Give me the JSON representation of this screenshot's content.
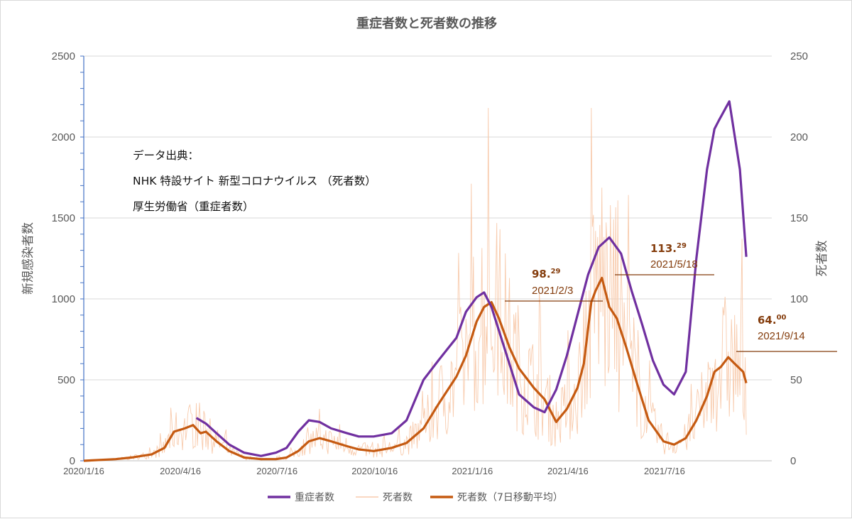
{
  "chart_data": {
    "type": "line",
    "title": "重症者数と死者数の推移",
    "ylabel_left": "新規感染者数",
    "ylabel_right": "死者数",
    "ylim_left": [
      0,
      2500
    ],
    "ylim_right": [
      0,
      250
    ],
    "yticks_left": [
      "0",
      "500",
      "1000",
      "1500",
      "2000",
      "2500"
    ],
    "yticks_right": [
      "0",
      "50",
      "100",
      "150",
      "200",
      "250"
    ],
    "x_tick_labels": [
      "2020/1/16",
      "2020/4/16",
      "2020/7/16",
      "2020/10/16",
      "2021/1/16",
      "2021/4/16",
      "2021/7/16"
    ],
    "x_range": [
      "2020-01-16",
      "2021-10-25"
    ],
    "grid": "horizontal",
    "source_lines": [
      "データ出典：",
      "NHK 特設サイト 新型コロナウイルス （死者数）",
      "厚生労働省（重症者数）"
    ],
    "annotations": [
      {
        "value_int": "98.",
        "value_sup": "29",
        "date": "2021/2/3"
      },
      {
        "value_int": "113.",
        "value_sup": "29",
        "date": "2021/5/18"
      },
      {
        "value_int": "64.",
        "value_sup": "00",
        "date": "2021/9/14"
      }
    ],
    "legend_position": "bottom",
    "series": [
      {
        "name": "重症者数",
        "axis": "left",
        "color": "#7030a0",
        "x": [
          "2020-05-01",
          "2020-05-10",
          "2020-05-20",
          "2020-06-01",
          "2020-06-15",
          "2020-07-01",
          "2020-07-15",
          "2020-07-25",
          "2020-08-05",
          "2020-08-15",
          "2020-08-25",
          "2020-09-05",
          "2020-09-20",
          "2020-10-01",
          "2020-10-15",
          "2020-11-01",
          "2020-11-15",
          "2020-12-01",
          "2020-12-15",
          "2021-01-01",
          "2021-01-10",
          "2021-01-20",
          "2021-01-27",
          "2021-02-03",
          "2021-02-15",
          "2021-03-01",
          "2021-03-15",
          "2021-03-25",
          "2021-04-05",
          "2021-04-15",
          "2021-04-25",
          "2021-05-05",
          "2021-05-15",
          "2021-05-25",
          "2021-06-05",
          "2021-06-15",
          "2021-06-25",
          "2021-07-05",
          "2021-07-15",
          "2021-07-25",
          "2021-08-05",
          "2021-08-15",
          "2021-08-25",
          "2021-09-01",
          "2021-09-05",
          "2021-09-15",
          "2021-09-25",
          "2021-10-01"
        ],
        "values": [
          265,
          230,
          170,
          100,
          50,
          30,
          50,
          80,
          180,
          250,
          240,
          200,
          170,
          150,
          150,
          170,
          250,
          500,
          620,
          760,
          920,
          1010,
          1040,
          950,
          700,
          410,
          330,
          300,
          440,
          650,
          900,
          1150,
          1320,
          1380,
          1280,
          1050,
          840,
          620,
          470,
          410,
          550,
          1250,
          1800,
          2050,
          2100,
          2220,
          1800,
          1260
        ]
      },
      {
        "name": "死者数",
        "axis": "right",
        "color": "#f8cbad",
        "values_note": "daily raw counts (noisy series)"
      },
      {
        "name": "死者数（7日移動平均）",
        "axis": "right",
        "color": "#c55a11",
        "x": [
          "2020-01-16",
          "2020-02-15",
          "2020-03-01",
          "2020-03-20",
          "2020-04-01",
          "2020-04-10",
          "2020-04-20",
          "2020-04-28",
          "2020-05-05",
          "2020-05-10",
          "2020-05-20",
          "2020-06-01",
          "2020-06-15",
          "2020-07-01",
          "2020-07-15",
          "2020-07-25",
          "2020-08-05",
          "2020-08-15",
          "2020-08-25",
          "2020-09-05",
          "2020-09-20",
          "2020-10-01",
          "2020-10-15",
          "2020-11-01",
          "2020-11-15",
          "2020-12-01",
          "2020-12-15",
          "2021-01-01",
          "2021-01-10",
          "2021-01-20",
          "2021-01-27",
          "2021-02-03",
          "2021-02-10",
          "2021-02-20",
          "2021-03-01",
          "2021-03-15",
          "2021-03-25",
          "2021-04-05",
          "2021-04-15",
          "2021-04-25",
          "2021-05-01",
          "2021-05-08",
          "2021-05-12",
          "2021-05-18",
          "2021-05-25",
          "2021-06-01",
          "2021-06-10",
          "2021-06-20",
          "2021-07-01",
          "2021-07-15",
          "2021-07-25",
          "2021-08-05",
          "2021-08-15",
          "2021-08-25",
          "2021-09-01",
          "2021-09-07",
          "2021-09-14",
          "2021-09-20",
          "2021-09-28",
          "2021-10-01"
        ],
        "values": [
          0,
          1,
          2,
          4,
          8,
          18,
          20,
          22,
          17,
          18,
          12,
          6,
          2,
          1,
          1,
          2,
          6,
          12,
          14,
          12,
          9,
          7,
          6,
          8,
          11,
          20,
          35,
          52,
          65,
          86,
          95,
          98,
          88,
          70,
          57,
          45,
          38,
          24,
          32,
          45,
          60,
          98,
          105,
          113,
          95,
          88,
          70,
          48,
          25,
          12,
          10,
          14,
          25,
          40,
          55,
          58,
          64,
          60,
          55,
          48
        ]
      }
    ]
  }
}
